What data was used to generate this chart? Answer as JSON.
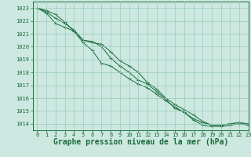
{
  "background_color": "#cce8e0",
  "grid_color": "#99ccbb",
  "line_color": "#1a6b3a",
  "marker_color": "#1a6b3a",
  "xlabel": "Graphe pression niveau de la mer (hPa)",
  "xlabel_fontsize": 7,
  "xlim": [
    -0.5,
    23
  ],
  "ylim": [
    1013.5,
    1023.5
  ],
  "yticks": [
    1014,
    1015,
    1016,
    1017,
    1018,
    1019,
    1020,
    1021,
    1022,
    1023
  ],
  "xticks": [
    0,
    1,
    2,
    3,
    4,
    5,
    6,
    7,
    8,
    9,
    10,
    11,
    12,
    13,
    14,
    15,
    16,
    17,
    18,
    19,
    20,
    21,
    22,
    23
  ],
  "series": [
    [
      1023.0,
      1022.8,
      1022.5,
      1021.9,
      1021.2,
      1020.5,
      1020.3,
      1020.2,
      1019.6,
      1018.9,
      1018.5,
      1018.0,
      1017.2,
      1016.7,
      1016.0,
      1015.5,
      1015.1,
      1014.7,
      1014.2,
      1013.9,
      1013.9,
      1014.0,
      1014.1,
      1014.0
    ],
    [
      1023.0,
      1022.7,
      1022.2,
      1021.8,
      1021.3,
      1020.5,
      1020.4,
      1020.0,
      1019.1,
      1018.5,
      1018.0,
      1017.4,
      1017.1,
      1016.5,
      1015.9,
      1015.2,
      1014.9,
      1014.4,
      1014.1,
      1013.9,
      1013.9,
      1014.0,
      1014.1,
      1013.9
    ],
    [
      1023.0,
      1022.6,
      1021.8,
      1021.5,
      1021.2,
      1020.3,
      1019.7,
      1018.7,
      1018.5,
      1018.0,
      1017.5,
      1017.1,
      1016.8,
      1016.3,
      1015.8,
      1015.3,
      1014.9,
      1014.3,
      1013.9,
      1013.8,
      1013.8,
      1013.9,
      1014.0,
      1013.9
    ]
  ]
}
